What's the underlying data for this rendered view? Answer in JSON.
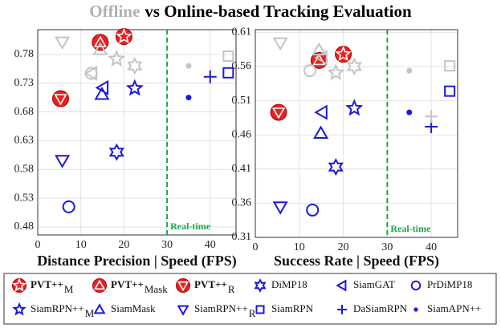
{
  "title_highlight": "Offline",
  "title_highlight_color": "#b0b0b0",
  "title": "vs Online-based Tracking Evaluation",
  "offline_color": "#c4c4c4",
  "chart_data": [
    {
      "type": "scatter",
      "x_label": "Distance Precision | Speed (FPS)",
      "xlim": [
        0,
        46
      ],
      "xticks": [
        0,
        10,
        20,
        30,
        40
      ],
      "ylim": [
        0.466,
        0.823
      ],
      "yticks": [
        0.48,
        0.53,
        0.58,
        0.63,
        0.68,
        0.73,
        0.78
      ],
      "grid": true,
      "threshold": {
        "x": 30,
        "label": "Real-time",
        "color": "#1aa64a"
      },
      "series": [
        {
          "name": "PVT++",
          "sub": "M",
          "color": "#e8221e",
          "marker": "star-circle",
          "x": [
            20.0
          ],
          "values": [
            0.811
          ]
        },
        {
          "name": "PVT++",
          "sub": "Mask",
          "color": "#e8221e",
          "marker": "triangle-circle",
          "x": [
            14.5
          ],
          "values": [
            0.801
          ]
        },
        {
          "name": "PVT++",
          "sub": "R",
          "color": "#e8221e",
          "marker": "down-circle",
          "x": [
            5.3
          ],
          "values": [
            0.703
          ]
        },
        {
          "name": "DiMP18",
          "color": "#1a1adb",
          "marker": "star6",
          "x": [
            18.3,
            22.5
          ],
          "values": [
            0.61,
            0.76
          ]
        },
        {
          "name": "SiamGAT",
          "color": "#1a1adb",
          "marker": "left",
          "x": [
            15.2,
            12.6
          ],
          "values": [
            0.722,
            0.747
          ]
        },
        {
          "name": "PrDiMP18",
          "color": "#1a1adb",
          "marker": "circle",
          "x": [
            7.2,
            12.4
          ],
          "values": [
            0.515,
            0.747
          ]
        },
        {
          "name": "SiamRPN++",
          "sub": "M",
          "color": "#1a1adb",
          "marker": "star",
          "x": [
            22.5,
            18.3
          ],
          "values": [
            0.721,
            0.772
          ]
        },
        {
          "name": "SiamMask",
          "color": "#1a1adb",
          "marker": "triangle",
          "x": [
            14.9,
            14.5
          ],
          "values": [
            0.71,
            0.788
          ]
        },
        {
          "name": "SiamRPN++",
          "sub": "R",
          "color": "#1a1adb",
          "marker": "down",
          "x": [
            5.7,
            5.7
          ],
          "values": [
            0.596,
            0.802
          ]
        },
        {
          "name": "SiamRPN",
          "color": "#1a1adb",
          "marker": "square",
          "x": [
            44.2,
            44.2
          ],
          "values": [
            0.748,
            0.777
          ]
        },
        {
          "name": "DaSiamRPN",
          "color": "#1a1adb",
          "marker": "plus",
          "x": [
            40.0
          ],
          "values": [
            0.741
          ]
        },
        {
          "name": "SiamAPN++",
          "color": "#1a1adb",
          "marker": "dot",
          "x": [
            35.0,
            35.0
          ],
          "values": [
            0.705,
            0.76
          ]
        }
      ]
    },
    {
      "type": "scatter",
      "x_label": "Success Rate | Speed (FPS)",
      "xlim": [
        0,
        46
      ],
      "xticks": [
        0,
        10,
        20,
        30,
        40
      ],
      "ylim": [
        0.31,
        0.614
      ],
      "yticks": [
        0.31,
        0.36,
        0.41,
        0.46,
        0.51,
        0.56,
        0.61
      ],
      "grid": true,
      "threshold": {
        "x": 30,
        "label": "Real-time",
        "color": "#1aa64a"
      },
      "series": [
        {
          "color": "#e8221e",
          "marker": "star-circle",
          "x": [
            20.0
          ],
          "values": [
            0.578
          ]
        },
        {
          "color": "#e8221e",
          "marker": "triangle-circle",
          "x": [
            14.5
          ],
          "values": [
            0.569
          ]
        },
        {
          "color": "#e8221e",
          "marker": "down-circle",
          "x": [
            5.3
          ],
          "values": [
            0.493
          ]
        },
        {
          "color": "#1a1adb",
          "marker": "star6",
          "x": [
            18.3,
            22.5
          ],
          "values": [
            0.413,
            0.56
          ]
        },
        {
          "color": "#1a1adb",
          "marker": "left",
          "x": [
            15.2,
            15.2
          ],
          "values": [
            0.493,
            0.573
          ]
        },
        {
          "color": "#1a1adb",
          "marker": "circle",
          "x": [
            13.0,
            12.4
          ],
          "values": [
            0.35,
            0.554
          ]
        },
        {
          "color": "#1a1adb",
          "marker": "star",
          "x": [
            22.5,
            18.3
          ],
          "values": [
            0.499,
            0.551
          ]
        },
        {
          "color": "#1a1adb",
          "marker": "triangle",
          "x": [
            14.9,
            14.5
          ],
          "values": [
            0.462,
            0.584
          ]
        },
        {
          "color": "#1a1adb",
          "marker": "down",
          "x": [
            5.7,
            5.7
          ],
          "values": [
            0.355,
            0.595
          ]
        },
        {
          "color": "#1a1adb",
          "marker": "square",
          "x": [
            44.2,
            44.2
          ],
          "values": [
            0.524,
            0.561
          ]
        },
        {
          "color": "#1a1adb",
          "marker": "plus",
          "x": [
            40.0,
            40.0
          ],
          "values": [
            0.472,
            0.487
          ]
        },
        {
          "color": "#1a1adb",
          "marker": "dot",
          "x": [
            35.0,
            35.0
          ],
          "values": [
            0.493,
            0.554
          ]
        }
      ]
    }
  ]
}
